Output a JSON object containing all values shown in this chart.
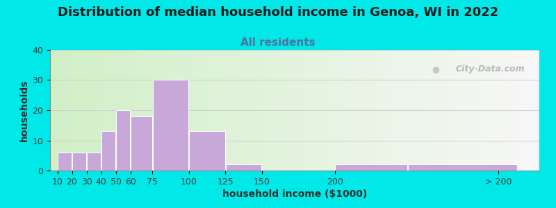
{
  "title": "Distribution of median household income in Genoa, WI in 2022",
  "subtitle": "All residents",
  "xlabel": "household income ($1000)",
  "ylabel": "households",
  "bar_color": "#c8a8d8",
  "bar_edge_color": "#ffffff",
  "background_color": "#00e8e8",
  "ylim": [
    0,
    40
  ],
  "yticks": [
    0,
    10,
    20,
    30,
    40
  ],
  "categories": [
    "10",
    "20",
    "30",
    "40",
    "50",
    "60",
    "75",
    "100",
    "125",
    "150",
    "200",
    "> 200"
  ],
  "values": [
    6,
    6,
    6,
    13,
    20,
    18,
    30,
    13,
    2,
    0,
    2,
    2
  ],
  "bar_widths": [
    10,
    10,
    10,
    10,
    10,
    15,
    25,
    25,
    25,
    25,
    50,
    75
  ],
  "bar_lefts": [
    10,
    20,
    30,
    40,
    50,
    60,
    75,
    100,
    125,
    150,
    200,
    250
  ],
  "xtick_positions": [
    10,
    20,
    30,
    40,
    50,
    60,
    75,
    100,
    125,
    150,
    200,
    312
  ],
  "xtick_labels": [
    "10",
    "20",
    "30",
    "40",
    "50",
    "60",
    "75",
    "100",
    "125",
    "150",
    "200",
    "> 200"
  ],
  "xlim": [
    5,
    340
  ],
  "title_fontsize": 13,
  "subtitle_fontsize": 11,
  "axis_label_fontsize": 10,
  "tick_fontsize": 9,
  "watermark": "City-Data.com"
}
